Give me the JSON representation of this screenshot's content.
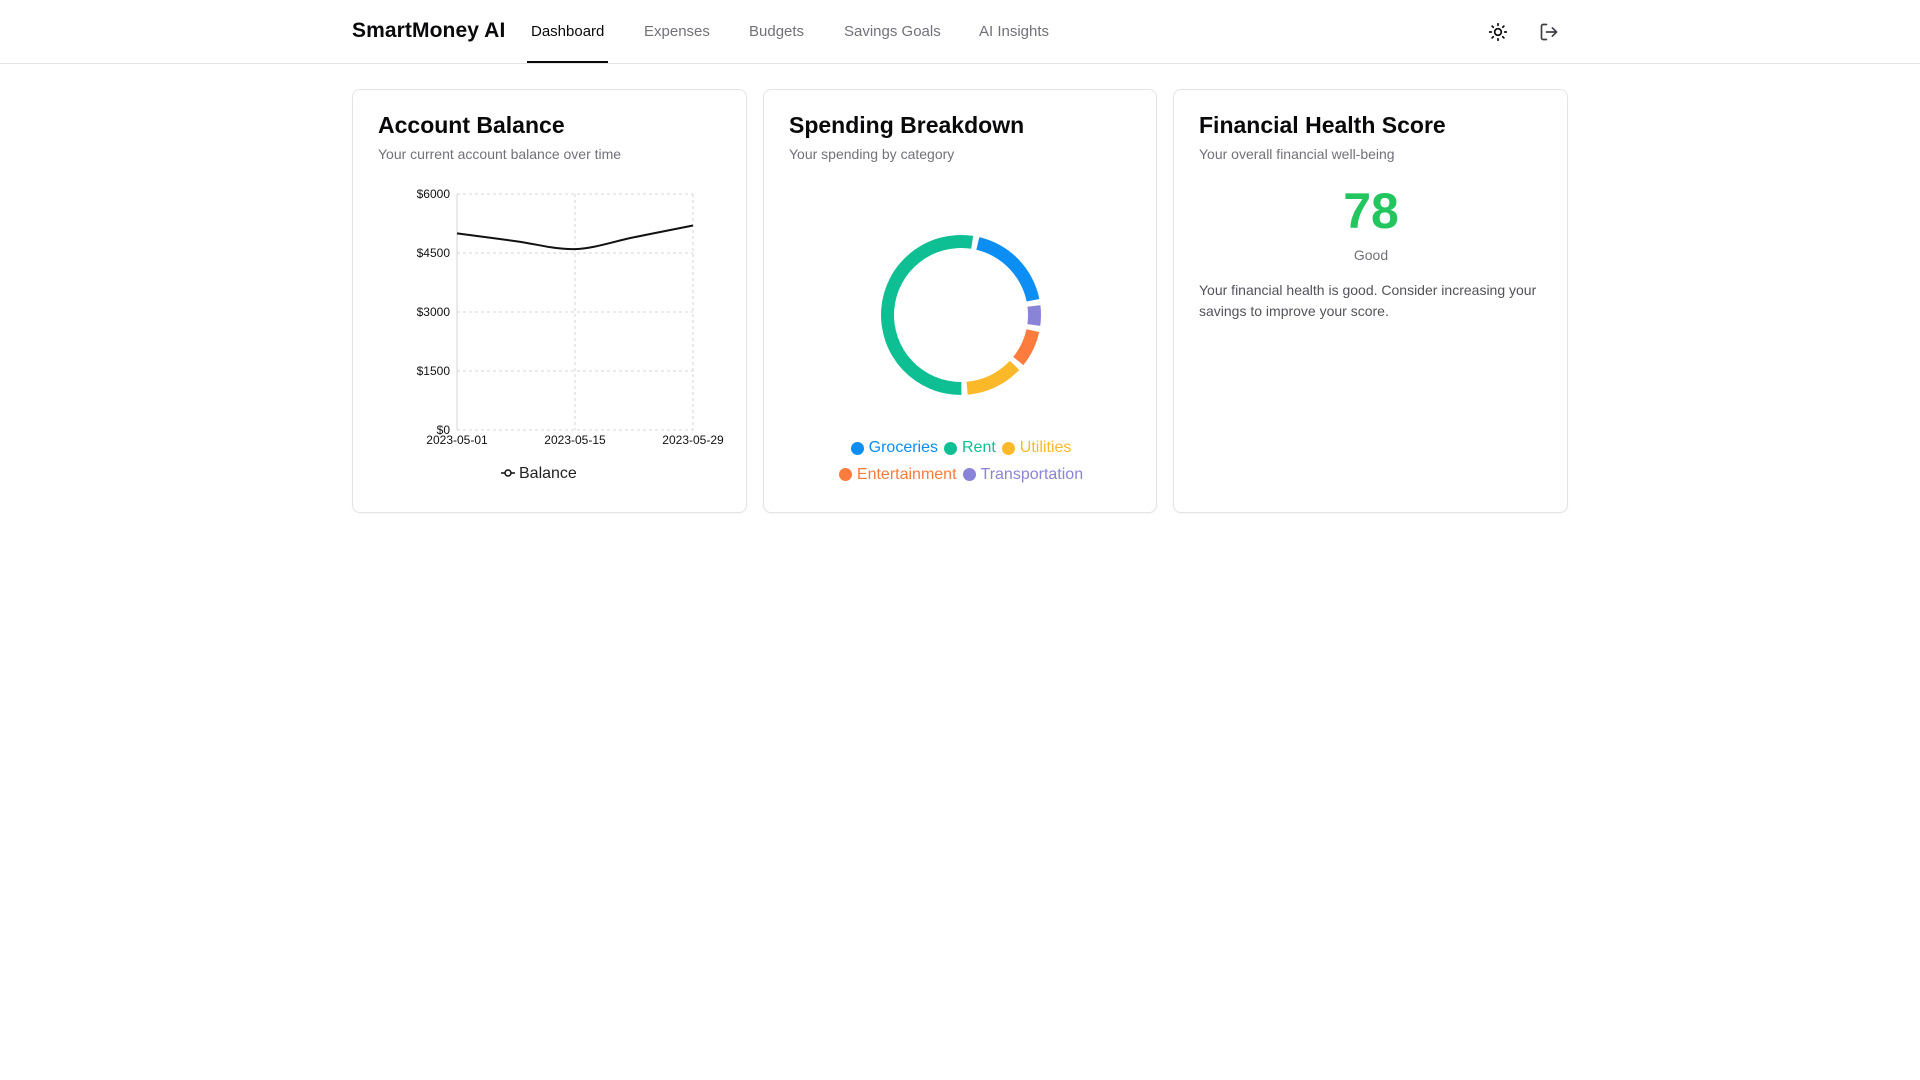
{
  "app": {
    "title": "SmartMoney AI"
  },
  "nav": {
    "tabs": [
      {
        "label": "Dashboard",
        "active": true
      },
      {
        "label": "Expenses",
        "active": false
      },
      {
        "label": "Budgets",
        "active": false
      },
      {
        "label": "Savings Goals",
        "active": false
      },
      {
        "label": "AI Insights",
        "active": false
      }
    ],
    "icons": {
      "theme": "sun-icon",
      "logout": "logout-icon"
    }
  },
  "cards": {
    "balance": {
      "title": "Account Balance",
      "description": "Your current account balance over time"
    },
    "spending": {
      "title": "Spending Breakdown",
      "description": "Your spending by category"
    },
    "health": {
      "title": "Financial Health Score",
      "description": "Your overall financial well-being",
      "score": "78",
      "rating": "Good",
      "message": "Your financial health is good. Consider increasing your savings to improve your score.",
      "score_color": "#22c55e"
    }
  },
  "chart_data": [
    {
      "type": "line",
      "x": [
        "2023-05-01",
        "2023-05-08",
        "2023-05-15",
        "2023-05-22",
        "2023-05-29"
      ],
      "x_tick_labels": [
        "2023-05-01",
        "2023-05-15",
        "2023-05-29"
      ],
      "series": [
        {
          "name": "Balance",
          "values": [
            5000,
            4800,
            4600,
            4900,
            5200
          ],
          "color": "#111111"
        }
      ],
      "y_tick_labels": [
        "$0",
        "$1500",
        "$3000",
        "$4500",
        "$6000"
      ],
      "y_ticks": [
        0,
        1500,
        3000,
        4500,
        6000
      ],
      "ylim": [
        0,
        6000
      ],
      "grid": true,
      "legend": "bottom"
    },
    {
      "type": "pie",
      "categories": [
        "Groceries",
        "Rent",
        "Utilities",
        "Entertainment",
        "Transportation"
      ],
      "values": [
        18,
        50,
        12,
        8,
        5
      ],
      "display_order": [
        "Groceries",
        "Transportation",
        "Entertainment",
        "Utilities",
        "Rent"
      ],
      "colors": {
        "Groceries": "#0c8ef5",
        "Rent": "#0fbf94",
        "Utilities": "#fbb829",
        "Entertainment": "#fb7c3c",
        "Transportation": "#8a84d8"
      },
      "donut": true,
      "legend": "bottom"
    }
  ]
}
